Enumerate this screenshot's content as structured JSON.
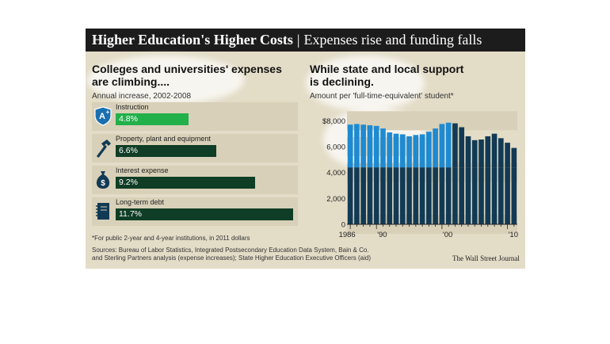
{
  "title": {
    "main": "Higher Education's Higher Costs",
    "separator": "|",
    "sub": "Expenses rise and funding falls"
  },
  "left_panel": {
    "heading_line1": "Colleges and universities' expenses",
    "heading_line2": "are climbing....",
    "subheading": "Annual increase, 2002-2008",
    "items": [
      {
        "label": "Instruction",
        "value_label": "4.8%",
        "icon": "graduation-a-plus-shield-icon"
      },
      {
        "label": "Property, plant and equipment",
        "value_label": "6.6%",
        "icon": "hammer-icon"
      },
      {
        "label": "Interest expense",
        "value_label": "9.2%",
        "icon": "money-bag-icon"
      },
      {
        "label": "Long-term debt",
        "value_label": "11.7%",
        "icon": "notebook-icon"
      }
    ]
  },
  "right_panel": {
    "heading_line1": "While state and local support",
    "heading_line2": "is declining.",
    "subheading": "Amount per 'full-time-equivalent' student*"
  },
  "footnote": "*For public 2-year and 4-year institutions, in 2011 dollars",
  "sources_line1": "Sources: Bureau of Labor Statistics, Integrated Postsecondary Education Data System, Bain & Co.",
  "sources_line2": "and Sterling Partners analysis (expense increases); State Higher Education Executive Officers (aid)",
  "credit": "The Wall Street Journal",
  "colors": {
    "highlight_green": "#22b04a",
    "dark_green": "#0f3d25",
    "bar_blue": "#1e8ad2",
    "bar_dark": "#123a54",
    "panel_bg": "#e3dcc7"
  },
  "chart_data": [
    {
      "type": "bar",
      "title": "Colleges and universities' expenses are climbing....",
      "subtitle": "Annual increase, 2002-2008",
      "categories": [
        "Instruction",
        "Property, plant and equipment",
        "Interest expense",
        "Long-term debt"
      ],
      "values": [
        4.8,
        6.6,
        9.2,
        11.7
      ],
      "value_labels": [
        "4.8%",
        "6.6%",
        "9.2%",
        "11.7%"
      ],
      "unit": "%",
      "orientation": "horizontal"
    },
    {
      "type": "bar",
      "title": "While state and local support is declining.",
      "subtitle": "Amount per 'full-time-equivalent' student*",
      "x": [
        1986,
        1987,
        1988,
        1989,
        1990,
        1991,
        1992,
        1993,
        1994,
        1995,
        1996,
        1997,
        1998,
        1999,
        2000,
        2001,
        2002,
        2003,
        2004,
        2005,
        2006,
        2007,
        2008,
        2009,
        2010,
        2011
      ],
      "values": [
        7700,
        7750,
        7700,
        7650,
        7600,
        7400,
        7100,
        7000,
        6950,
        6800,
        6900,
        6950,
        7150,
        7400,
        7750,
        7850,
        7800,
        7500,
        6800,
        6500,
        6550,
        6800,
        7000,
        6650,
        6300,
        5900
      ],
      "x_tick_labels": [
        "1986",
        "'90",
        "'00",
        "'10"
      ],
      "x_tick_positions": [
        1986,
        1990,
        2000,
        2010
      ],
      "y_tick_labels": [
        "$8,000",
        "6,000",
        "4,000",
        "2,000",
        "0"
      ],
      "y_ticks": [
        8000,
        6000,
        4000,
        2000,
        0
      ],
      "ylim": [
        0,
        9000
      ],
      "grid": true
    }
  ]
}
